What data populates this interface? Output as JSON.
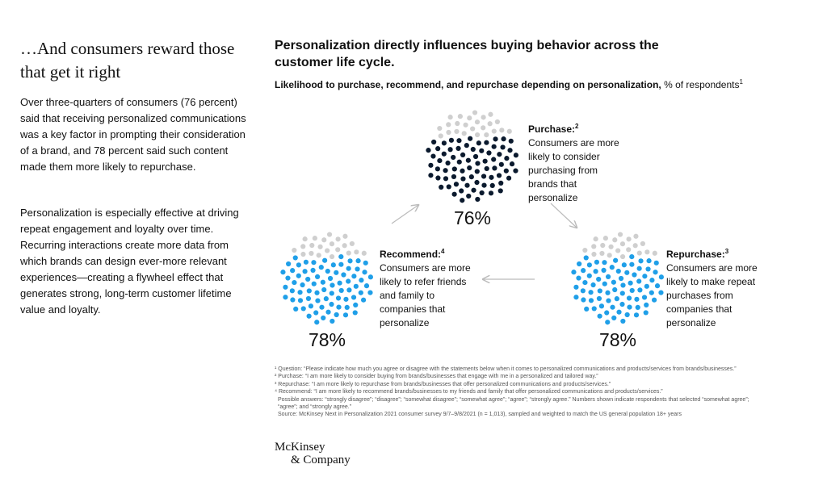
{
  "left": {
    "heading": "…And consumers reward those that get it right",
    "paragraphs": [
      "Over three-quarters of consumers (76 percent) said that receiving personalized communications was a key factor in prompting their consideration of a brand, and 78 percent said such content made them more likely to repurchase.",
      "Personalization is especially effective at driving repeat engagement and loyalty over time. Recurring interactions create more data from which brands can design ever-more relevant experiences—creating a flywheel effect that generates strong, long-term customer lifetime value and loyalty."
    ]
  },
  "title": "Personalization directly influences buying behavior across the customer life cycle.",
  "subtitle": {
    "bold": "Likelihood to purchase, recommend, and repurchase depending on personalization,",
    "rest": " % of respondents",
    "sup": "1"
  },
  "items": [
    {
      "label": "Purchase:",
      "sup": "2",
      "text": "Consumers are more likely to consider purchasing from brands that personalize",
      "value": 76,
      "value_label": "76%",
      "color": "#0b1a2e"
    },
    {
      "label": "Recommend:",
      "sup": "4",
      "text": "Consumers are more likely to refer friends and family to companies that personalize",
      "value": 78,
      "value_label": "78%",
      "color": "#1f9fe8"
    },
    {
      "label": "Repurchase:",
      "sup": "3",
      "text": "Consumers are more likely to make repeat purchases from companies that personalize",
      "value": 78,
      "value_label": "78%",
      "color": "#1f9fe8"
    }
  ],
  "empty_color": "#cfcfcf",
  "footnotes": [
    "¹ Question: “Please indicate how much you agree or disagree with the statements below when it comes to personalized communications and products/services from brands/businesses.”",
    "² Purchase: “I am more likely to consider buying from brands/businesses that engage with me in a personalized and tailored way.”",
    "³ Repurchase: “I am more likely to repurchase from brands/businesses that offer personalized communications and products/services.”",
    "⁴ Recommend: “I am more likely to recommend brands/businesses to my friends and family that offer personalized communications and products/services.”",
    "Possible answers: “strongly disagree”; “disagree”; “somewhat disagree”; “somewhat agree”; “agree”; “strongly agree.” Numbers shown indicate respondents that selected “somewhat agree”; “agree”; and “strongly agree.”",
    "Source: McKinsey Next in Personalization 2021 consumer survey 9/7–9/8/2021 (n = 1,013), sampled and weighted to match the US general population 18+ years"
  ],
  "logo": [
    "McKinsey",
    "& Company"
  ]
}
